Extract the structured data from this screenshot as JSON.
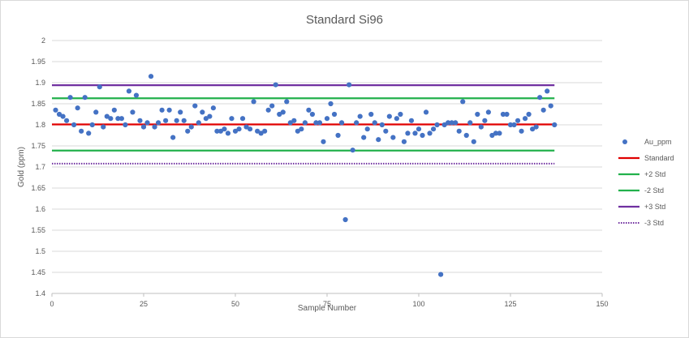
{
  "chart_data": {
    "type": "scatter",
    "title": "Standard Si96",
    "xlabel": "Sample Number",
    "ylabel": "Gold (ppm)",
    "xlim": [
      0,
      150
    ],
    "ylim": [
      1.4,
      2
    ],
    "x_ticks": [
      0,
      25,
      50,
      75,
      100,
      125,
      150
    ],
    "y_ticks": [
      1.4,
      1.45,
      1.5,
      1.55,
      1.6,
      1.65,
      1.7,
      1.75,
      1.8,
      1.85,
      1.9,
      1.95,
      2
    ],
    "x_tick_labels": [
      "0",
      "25",
      "50",
      "75",
      "100",
      "125",
      "150"
    ],
    "y_tick_labels": [
      "1.4",
      "1.45",
      "1.5",
      "1.55",
      "1.6",
      "1.65",
      "1.7",
      "1.75",
      "1.8",
      "1.85",
      "1.9",
      "1.95",
      "2"
    ],
    "grid": "horizontal",
    "legend_position": "right",
    "points_series": {
      "name": "Au_ppm",
      "color": "#4472c4",
      "x": [
        1,
        2,
        3,
        4,
        5,
        6,
        7,
        8,
        9,
        10,
        11,
        12,
        13,
        14,
        15,
        16,
        17,
        18,
        19,
        20,
        21,
        22,
        23,
        24,
        25,
        26,
        27,
        28,
        29,
        30,
        31,
        32,
        33,
        34,
        35,
        36,
        37,
        38,
        39,
        40,
        41,
        42,
        43,
        44,
        45,
        46,
        47,
        48,
        49,
        50,
        51,
        52,
        53,
        54,
        55,
        56,
        57,
        58,
        59,
        60,
        61,
        62,
        63,
        64,
        65,
        66,
        67,
        68,
        69,
        70,
        71,
        72,
        73,
        74,
        75,
        76,
        77,
        78,
        79,
        80,
        81,
        82,
        83,
        84,
        85,
        86,
        87,
        88,
        89,
        90,
        91,
        92,
        93,
        94,
        95,
        96,
        97,
        98,
        99,
        100,
        101,
        102,
        103,
        104,
        105,
        106,
        107,
        108,
        109,
        110,
        111,
        112,
        113,
        114,
        115,
        116,
        117,
        118,
        119,
        120,
        121,
        122,
        123,
        124,
        125,
        126,
        127,
        128,
        129,
        130,
        131,
        132,
        133,
        134,
        135,
        136,
        137
      ],
      "y": [
        1.835,
        1.825,
        1.82,
        1.81,
        1.865,
        1.8,
        1.84,
        1.785,
        1.865,
        1.78,
        1.8,
        1.83,
        1.89,
        1.795,
        1.82,
        1.815,
        1.835,
        1.815,
        1.815,
        1.8,
        1.88,
        1.83,
        1.87,
        1.81,
        1.795,
        1.805,
        1.915,
        1.795,
        1.805,
        1.835,
        1.81,
        1.835,
        1.77,
        1.81,
        1.83,
        1.81,
        1.785,
        1.795,
        1.845,
        1.805,
        1.83,
        1.815,
        1.82,
        1.84,
        1.785,
        1.785,
        1.79,
        1.78,
        1.815,
        1.785,
        1.79,
        1.815,
        1.795,
        1.79,
        1.855,
        1.785,
        1.78,
        1.785,
        1.835,
        1.845,
        1.895,
        1.825,
        1.83,
        1.855,
        1.805,
        1.81,
        1.785,
        1.79,
        1.805,
        1.835,
        1.825,
        1.805,
        1.805,
        1.76,
        1.815,
        1.85,
        1.825,
        1.775,
        1.805,
        1.575,
        1.895,
        1.74,
        1.805,
        1.82,
        1.77,
        1.79,
        1.825,
        1.805,
        1.765,
        1.8,
        1.785,
        1.82,
        1.77,
        1.815,
        1.825,
        1.76,
        1.78,
        1.81,
        1.78,
        1.79,
        1.775,
        1.83,
        1.78,
        1.79,
        1.8,
        1.445,
        1.8,
        1.805,
        1.805,
        1.805,
        1.785,
        1.855,
        1.775,
        1.805,
        1.76,
        1.825,
        1.795,
        1.81,
        1.83,
        1.775,
        1.78,
        1.78,
        1.825,
        1.825,
        1.8,
        1.8,
        1.81,
        1.785,
        1.815,
        1.825,
        1.79,
        1.795,
        1.865,
        1.835,
        1.88,
        1.845,
        1.8
      ]
    },
    "reference_lines": [
      {
        "name": "Standard",
        "value": 1.801,
        "color": "#e00000",
        "style": "solid"
      },
      {
        "name": "+2 Std",
        "value": 1.863,
        "color": "#22b14c",
        "style": "solid"
      },
      {
        "name": "-2 Std",
        "value": 1.739,
        "color": "#22b14c",
        "style": "solid"
      },
      {
        "name": "+3 Std",
        "value": 1.894,
        "color": "#7030a0",
        "style": "solid"
      },
      {
        "name": "-3 Std",
        "value": 1.708,
        "color": "#7030a0",
        "style": "dotted"
      }
    ],
    "reference_line_x_range": [
      0,
      137
    ]
  }
}
